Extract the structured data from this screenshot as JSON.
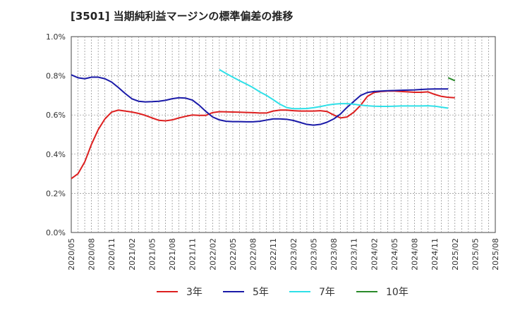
{
  "chart_data": {
    "type": "line",
    "title": "[3501]  当期純利益マージンの標準偏差の推移",
    "xlabel": "",
    "ylabel": "",
    "ylim": [
      0,
      1.0
    ],
    "y_ticks": [
      "0.0%",
      "0.2%",
      "0.4%",
      "0.6%",
      "0.8%",
      "1.0%"
    ],
    "x_ticks": [
      "2020/05",
      "2020/08",
      "2020/11",
      "2021/02",
      "2021/05",
      "2021/08",
      "2021/11",
      "2022/02",
      "2022/05",
      "2022/08",
      "2022/11",
      "2023/02",
      "2023/05",
      "2023/08",
      "2023/11",
      "2024/02",
      "2024/05",
      "2024/08",
      "2024/11",
      "2025/02",
      "2025/05",
      "2025/08"
    ],
    "grid": true,
    "legend_position": "bottom",
    "series": [
      {
        "name": "3年",
        "color": "#dd1f1f",
        "start_index": 0,
        "values": [
          0.275,
          0.3,
          0.36,
          0.45,
          0.525,
          0.58,
          0.615,
          0.625,
          0.62,
          0.615,
          0.608,
          0.598,
          0.585,
          0.573,
          0.57,
          0.575,
          0.585,
          0.593,
          0.6,
          0.598,
          0.598,
          0.612,
          0.617,
          0.616,
          0.615,
          0.614,
          0.613,
          0.612,
          0.61,
          0.61,
          0.62,
          0.625,
          0.625,
          0.622,
          0.62,
          0.62,
          0.62,
          0.622,
          0.618,
          0.6,
          0.585,
          0.59,
          0.615,
          0.65,
          0.695,
          0.715,
          0.72,
          0.722,
          0.722,
          0.72,
          0.718,
          0.716,
          0.716,
          0.718,
          0.705,
          0.695,
          0.69,
          0.688
        ]
      },
      {
        "name": "5年",
        "color": "#1a1aa8",
        "start_index": 0,
        "values": [
          0.805,
          0.79,
          0.785,
          0.793,
          0.793,
          0.785,
          0.768,
          0.74,
          0.71,
          0.683,
          0.67,
          0.667,
          0.668,
          0.67,
          0.675,
          0.683,
          0.688,
          0.686,
          0.676,
          0.65,
          0.618,
          0.59,
          0.575,
          0.568,
          0.566,
          0.566,
          0.565,
          0.565,
          0.568,
          0.574,
          0.58,
          0.58,
          0.578,
          0.572,
          0.562,
          0.552,
          0.548,
          0.552,
          0.563,
          0.58,
          0.605,
          0.64,
          0.67,
          0.7,
          0.715,
          0.72,
          0.722,
          0.724,
          0.725,
          0.726,
          0.727,
          0.728,
          0.73,
          0.732,
          0.733,
          0.733,
          0.733
        ]
      },
      {
        "name": "7年",
        "color": "#2fe0e8",
        "start_index": 22,
        "values": [
          0.832,
          0.812,
          0.793,
          0.775,
          0.758,
          0.74,
          0.718,
          0.7,
          0.678,
          0.655,
          0.638,
          0.632,
          0.632,
          0.633,
          0.637,
          0.643,
          0.65,
          0.655,
          0.658,
          0.658,
          0.655,
          0.65,
          0.647,
          0.645,
          0.644,
          0.644,
          0.645,
          0.646,
          0.646,
          0.646,
          0.646,
          0.647,
          0.645,
          0.64,
          0.635
        ]
      },
      {
        "name": "10年",
        "color": "#2a8a2a",
        "start_index": 56,
        "values": [
          0.79,
          0.775
        ]
      }
    ]
  }
}
